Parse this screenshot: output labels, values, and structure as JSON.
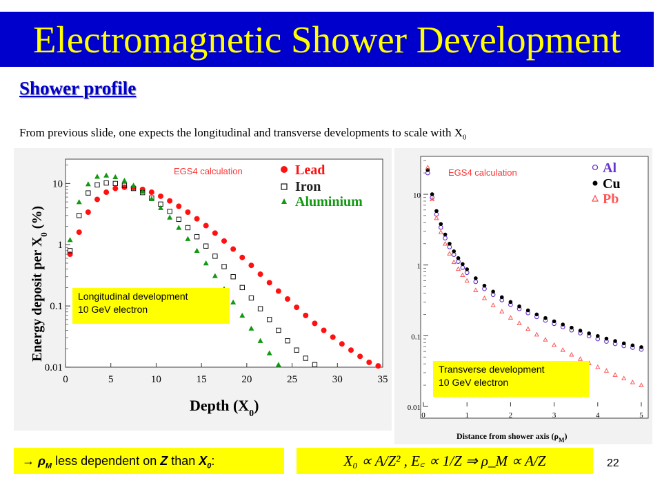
{
  "slide": {
    "title": "Electromagnetic Shower Development",
    "subtitle": "Shower profile",
    "intro_text": "From previous slide, one expects the longitudinal and transverse developments to scale with X",
    "intro_sub": "0",
    "page_number": "22",
    "title_bg": "#0000cc",
    "title_color": "#ffff00",
    "highlight_color": "#ffff00"
  },
  "note": {
    "arrow": "→",
    "rho": "ρ",
    "rho_sub": "M",
    "middle": " less dependent on ",
    "z": "Z",
    "than": " than ",
    "x": "X",
    "x_sub": "0",
    "colon": ":"
  },
  "formula": {
    "text": "X₀ ∝ A/Z² ,   E꜀ ∝ 1/Z  ⇒   ρ_M ∝ A/Z"
  },
  "left_plot": {
    "calc_label": "EGS4 calculation",
    "box_line1": "Longitudinal development",
    "box_line2": "10 GeV electron",
    "legend": [
      "Lead",
      "Iron",
      "Aluminium"
    ],
    "ylabel": "Energy deposit per X",
    "ylabel_sub": "0",
    "ylabel_unit": " (%)",
    "xlabel": "Depth (X",
    "xlabel_sub": "0",
    "xlabel_end": ")"
  },
  "right_plot": {
    "calc_label": "EGS4 calculation",
    "box_line1": "Transverse development",
    "box_line2": "10 GeV electron",
    "legend": [
      "Al",
      "Cu",
      "Pb"
    ],
    "xlabel": "Distance  from  shower  axis  (ρ",
    "xlabel_sub": "M",
    "xlabel_end": ")"
  },
  "chart_data": [
    {
      "type": "scatter",
      "title": "",
      "xlabel": "Depth (X0)",
      "ylabel": "Energy deposit per X0 (%)",
      "xlim": [
        0,
        35
      ],
      "ylim": [
        0.01,
        25
      ],
      "y_scale": "log",
      "x_ticks": [
        "0",
        "5",
        "10",
        "15",
        "20",
        "25",
        "30",
        "35"
      ],
      "y_ticks": [
        "0.01",
        "0.1",
        "1",
        "10"
      ],
      "legend_position": "top-right",
      "series": [
        {
          "name": "Lead",
          "marker": "filled-circle",
          "color": "#ff1111",
          "x": [
            0.5,
            1.5,
            2.5,
            3.5,
            4.5,
            5.5,
            6.5,
            7.5,
            8.5,
            9.5,
            10.5,
            11.5,
            12.5,
            13.5,
            14.5,
            15.5,
            16.5,
            17.5,
            18.5,
            19.5,
            20.5,
            21.5,
            22.5,
            23.5,
            24.5,
            25.5,
            26.5,
            27.5,
            28.5,
            29.5,
            30.5,
            31.5,
            32.5,
            33.5,
            34.5
          ],
          "y": [
            0.7,
            1.6,
            3.4,
            5.5,
            7.2,
            8.3,
            8.7,
            8.6,
            8.0,
            7.2,
            6.2,
            5.2,
            4.25,
            3.4,
            2.65,
            2.05,
            1.55,
            1.15,
            0.85,
            0.62,
            0.46,
            0.33,
            0.24,
            0.175,
            0.13,
            0.095,
            0.07,
            0.052,
            0.04,
            0.031,
            0.024,
            0.019,
            0.015,
            0.012,
            0.0105
          ]
        },
        {
          "name": "Iron",
          "marker": "open-square",
          "color": "#111111",
          "x": [
            0.5,
            1.5,
            2.5,
            3.5,
            4.5,
            5.5,
            6.5,
            7.5,
            8.5,
            9.5,
            10.5,
            11.5,
            12.5,
            13.5,
            14.5,
            15.5,
            16.5,
            17.5,
            18.5,
            19.5,
            20.5,
            21.5,
            22.5,
            23.5,
            24.5,
            25.5,
            26.5,
            27.5
          ],
          "y": [
            0.8,
            3.0,
            7.0,
            9.5,
            10.2,
            10.0,
            9.3,
            8.3,
            7.1,
            5.8,
            4.6,
            3.5,
            2.6,
            1.9,
            1.35,
            0.95,
            0.65,
            0.44,
            0.3,
            0.2,
            0.135,
            0.09,
            0.06,
            0.04,
            0.027,
            0.019,
            0.014,
            0.011
          ]
        },
        {
          "name": "Aluminium",
          "marker": "filled-triangle",
          "color": "#119911",
          "x": [
            0.5,
            1.5,
            2.5,
            3.5,
            4.5,
            5.5,
            6.5,
            7.5,
            8.5,
            9.5,
            10.5,
            11.5,
            12.5,
            13.5,
            14.5,
            15.5,
            16.5,
            17.5,
            18.5,
            19.5,
            20.5,
            21.5,
            22.5,
            23.5
          ],
          "y": [
            1.2,
            5.0,
            9.8,
            13.0,
            13.6,
            12.8,
            11.2,
            9.3,
            7.4,
            5.6,
            4.0,
            2.8,
            1.9,
            1.25,
            0.8,
            0.5,
            0.31,
            0.19,
            0.115,
            0.07,
            0.043,
            0.027,
            0.017,
            0.011
          ]
        }
      ]
    },
    {
      "type": "scatter",
      "title": "",
      "xlabel": "Distance from shower axis (ρM)",
      "ylabel": "",
      "xlim": [
        0,
        5
      ],
      "ylim": [
        0.01,
        30
      ],
      "y_scale": "log",
      "x_ticks": [
        "0",
        "1",
        "2",
        "3",
        "4",
        "5"
      ],
      "y_ticks": [
        "0.01",
        "0.1",
        "1",
        "10"
      ],
      "legend_position": "top-right",
      "series": [
        {
          "name": "Al",
          "marker": "open-circle",
          "color": "#6633cc",
          "x": [
            0.1,
            0.2,
            0.3,
            0.4,
            0.5,
            0.6,
            0.7,
            0.8,
            0.9,
            1.0,
            1.2,
            1.4,
            1.6,
            1.8,
            2.0,
            2.2,
            2.4,
            2.6,
            2.8,
            3.0,
            3.2,
            3.4,
            3.6,
            3.8,
            4.0,
            4.2,
            4.4,
            4.6,
            4.8,
            5.0
          ],
          "y": [
            20,
            9.0,
            5.2,
            3.4,
            2.4,
            1.8,
            1.4,
            1.12,
            0.92,
            0.78,
            0.58,
            0.46,
            0.38,
            0.32,
            0.275,
            0.24,
            0.21,
            0.185,
            0.165,
            0.148,
            0.133,
            0.12,
            0.109,
            0.099,
            0.09,
            0.083,
            0.077,
            0.072,
            0.068,
            0.064
          ]
        },
        {
          "name": "Cu",
          "marker": "filled-circle",
          "color": "#000000",
          "x": [
            0.1,
            0.2,
            0.3,
            0.4,
            0.5,
            0.6,
            0.7,
            0.8,
            0.9,
            1.0,
            1.2,
            1.4,
            1.6,
            1.8,
            2.0,
            2.2,
            2.4,
            2.6,
            2.8,
            3.0,
            3.2,
            3.4,
            3.6,
            3.8,
            4.0,
            4.2,
            4.4,
            4.6,
            4.8,
            5.0
          ],
          "y": [
            22,
            10.0,
            5.8,
            3.8,
            2.7,
            2.0,
            1.56,
            1.25,
            1.03,
            0.87,
            0.65,
            0.51,
            0.42,
            0.35,
            0.3,
            0.26,
            0.228,
            0.2,
            0.178,
            0.16,
            0.144,
            0.13,
            0.118,
            0.108,
            0.099,
            0.091,
            0.084,
            0.078,
            0.073,
            0.069
          ]
        },
        {
          "name": "Pb",
          "marker": "open-triangle",
          "color": "#ff5555",
          "x": [
            0.1,
            0.2,
            0.3,
            0.4,
            0.5,
            0.6,
            0.7,
            0.8,
            0.9,
            1.0,
            1.2,
            1.4,
            1.6,
            1.8,
            2.0,
            2.2,
            2.4,
            2.6,
            2.8,
            3.0,
            3.2,
            3.4,
            3.6,
            3.8,
            4.0,
            4.2,
            4.4,
            4.6,
            4.8,
            5.0
          ],
          "y": [
            24,
            8.5,
            4.6,
            2.9,
            2.0,
            1.45,
            1.1,
            0.88,
            0.72,
            0.6,
            0.44,
            0.34,
            0.27,
            0.22,
            0.18,
            0.15,
            0.125,
            0.104,
            0.088,
            0.074,
            0.063,
            0.054,
            0.047,
            0.041,
            0.036,
            0.032,
            0.028,
            0.025,
            0.022,
            0.02
          ]
        }
      ]
    }
  ]
}
